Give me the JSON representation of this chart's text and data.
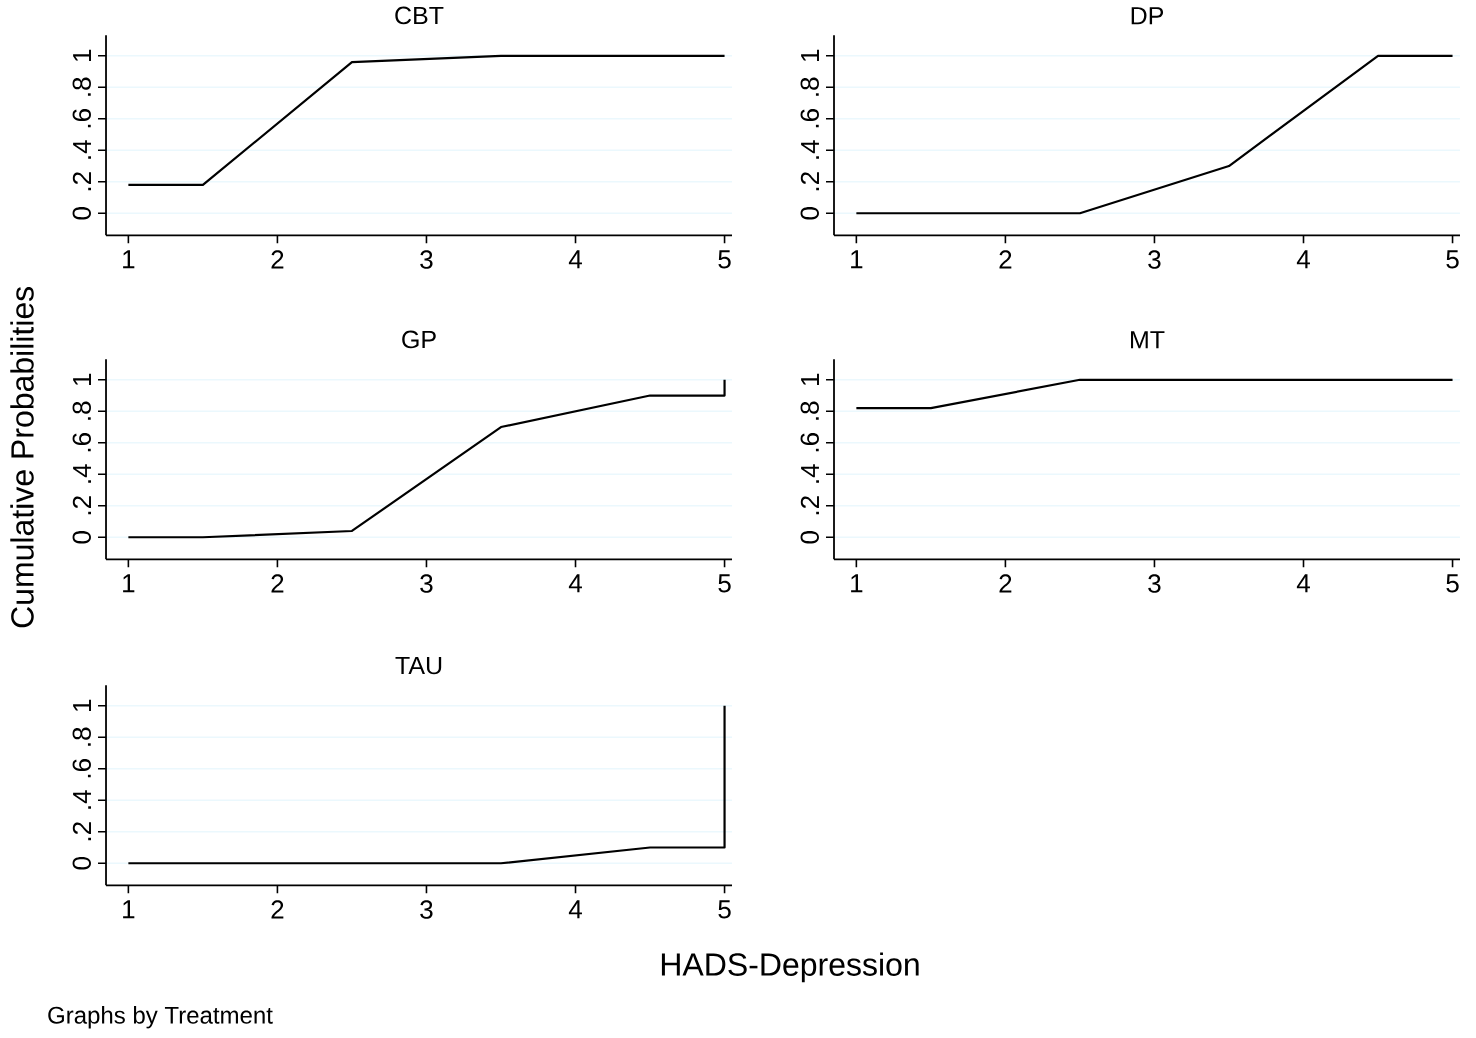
{
  "chart_data": [
    {
      "type": "line",
      "title": "CBT",
      "xlim": [
        0.85,
        5.05
      ],
      "ylim": [
        -0.14,
        1.13
      ],
      "xticks": [
        1,
        2,
        3,
        4,
        5
      ],
      "yticks": [
        0,
        {
          "value": 0.2,
          "label": ".2"
        },
        {
          "value": 0.4,
          "label": ".4"
        },
        {
          "value": 0.6,
          "label": ".6"
        },
        {
          "value": 0.8,
          "label": ".8"
        },
        1
      ],
      "grid": "y",
      "series": [
        {
          "color": "#000000",
          "x": [
            1,
            1.5,
            2.5,
            3.5,
            4.5,
            5
          ],
          "values": [
            0.18,
            0.18,
            0.96,
            1,
            1,
            1
          ]
        }
      ]
    },
    {
      "type": "line",
      "title": "DP",
      "xlim": [
        0.85,
        5.05
      ],
      "ylim": [
        -0.14,
        1.13
      ],
      "xticks": [
        1,
        2,
        3,
        4,
        5
      ],
      "yticks": [
        0,
        {
          "value": 0.2,
          "label": ".2"
        },
        {
          "value": 0.4,
          "label": ".4"
        },
        {
          "value": 0.6,
          "label": ".6"
        },
        {
          "value": 0.8,
          "label": ".8"
        },
        1
      ],
      "grid": "y",
      "series": [
        {
          "color": "#000000",
          "x": [
            1,
            1.5,
            2.5,
            3.5,
            4.5,
            5
          ],
          "values": [
            0,
            0,
            0,
            0.3,
            1,
            1
          ]
        }
      ]
    },
    {
      "type": "line",
      "title": "GP",
      "ylabel": "Cumulative Probabilities",
      "xlim": [
        0.85,
        5.05
      ],
      "ylim": [
        -0.14,
        1.13
      ],
      "xticks": [
        1,
        2,
        3,
        4,
        5
      ],
      "yticks": [
        0,
        {
          "value": 0.2,
          "label": ".2"
        },
        {
          "value": 0.4,
          "label": ".4"
        },
        {
          "value": 0.6,
          "label": ".6"
        },
        {
          "value": 0.8,
          "label": ".8"
        },
        1
      ],
      "grid": "y",
      "series": [
        {
          "color": "#000000",
          "x": [
            1,
            1.5,
            2.5,
            3.5,
            4.5,
            5,
            5
          ],
          "values": [
            0,
            0,
            0.04,
            0.7,
            0.9,
            0.9,
            1
          ]
        }
      ]
    },
    {
      "type": "line",
      "title": "MT",
      "xlim": [
        0.85,
        5.05
      ],
      "ylim": [
        -0.14,
        1.13
      ],
      "xticks": [
        1,
        2,
        3,
        4,
        5
      ],
      "yticks": [
        0,
        {
          "value": 0.2,
          "label": ".2"
        },
        {
          "value": 0.4,
          "label": ".4"
        },
        {
          "value": 0.6,
          "label": ".6"
        },
        {
          "value": 0.8,
          "label": ".8"
        },
        1
      ],
      "grid": "y",
      "series": [
        {
          "color": "#000000",
          "x": [
            1,
            1.5,
            2.5,
            3.5,
            4.5,
            5
          ],
          "values": [
            0.82,
            0.82,
            1,
            1,
            1,
            1
          ]
        }
      ]
    },
    {
      "type": "line",
      "title": "TAU",
      "xlabel": "HADS-Depression",
      "annotations": [
        "Graphs by Treatment"
      ],
      "xlim": [
        0.85,
        5.05
      ],
      "ylim": [
        -0.14,
        1.13
      ],
      "xticks": [
        1,
        2,
        3,
        4,
        5
      ],
      "yticks": [
        0,
        {
          "value": 0.2,
          "label": ".2"
        },
        {
          "value": 0.4,
          "label": ".4"
        },
        {
          "value": 0.6,
          "label": ".6"
        },
        {
          "value": 0.8,
          "label": ".8"
        },
        1
      ],
      "grid": "y",
      "series": [
        {
          "color": "#000000",
          "x": [
            1,
            1.5,
            2.5,
            3.5,
            4.5,
            5,
            5
          ],
          "values": [
            0,
            0,
            0,
            0,
            0.1,
            0.1,
            1
          ]
        }
      ]
    }
  ]
}
